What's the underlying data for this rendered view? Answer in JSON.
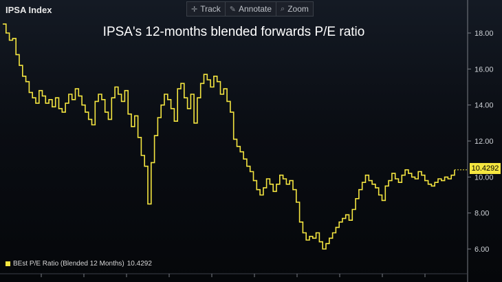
{
  "header": {
    "ticker": "IPSA Index"
  },
  "toolbar": {
    "items": [
      {
        "label": "Track",
        "icon": "crosshair-icon"
      },
      {
        "label": "Annotate",
        "icon": "pencil-icon"
      },
      {
        "label": "Zoom",
        "icon": "magnifier-icon"
      }
    ]
  },
  "colors": {
    "series": "#f5e640",
    "axis": "#7b7f86",
    "text": "#cfd3d8"
  },
  "legend": {
    "label": "BEst P/E Ratio (Blended 12 Months)",
    "value": "10.4292"
  },
  "last_value_badge": "10.4292",
  "chart_data": {
    "type": "line",
    "title": "IPSA's 12-months blended forwards P/E ratio",
    "xlabel": "",
    "ylabel": "",
    "ylim": [
      5.0,
      19.0
    ],
    "yticks": [
      6.0,
      8.0,
      10.0,
      12.0,
      14.0,
      16.0,
      18.0
    ],
    "ytick_labels": [
      "6.00",
      "8.00",
      "10.00",
      "12.00",
      "14.00",
      "16.00",
      "18.00"
    ],
    "grid": false,
    "legend_position": "bottom-left",
    "series": [
      {
        "name": "BEst P/E Ratio (Blended 12 Months)",
        "values": [
          18.5,
          18.0,
          17.6,
          17.7,
          16.8,
          16.2,
          15.6,
          15.3,
          14.7,
          14.4,
          14.1,
          14.8,
          14.5,
          14.1,
          14.3,
          13.9,
          14.4,
          13.8,
          13.6,
          14.1,
          14.6,
          14.3,
          14.9,
          14.5,
          14.0,
          13.6,
          13.2,
          12.9,
          14.2,
          14.6,
          14.3,
          13.6,
          13.2,
          14.4,
          15.0,
          14.6,
          14.2,
          14.8,
          13.5,
          12.8,
          13.4,
          12.2,
          11.2,
          10.6,
          8.5,
          10.8,
          12.3,
          13.3,
          14.0,
          14.6,
          14.3,
          13.8,
          13.1,
          14.9,
          15.2,
          14.4,
          13.8,
          14.6,
          13.0,
          14.4,
          15.2,
          15.7,
          15.4,
          15.0,
          15.6,
          15.3,
          14.6,
          14.9,
          14.2,
          13.6,
          12.1,
          11.7,
          11.4,
          11.0,
          10.6,
          10.3,
          9.8,
          9.3,
          9.0,
          9.4,
          9.9,
          9.6,
          9.2,
          9.6,
          10.1,
          9.9,
          9.6,
          9.8,
          9.3,
          8.6,
          7.5,
          6.9,
          6.5,
          6.7,
          6.6,
          6.9,
          6.4,
          6.0,
          6.3,
          6.6,
          6.9,
          7.2,
          7.5,
          7.7,
          7.9,
          7.6,
          8.2,
          8.8,
          9.3,
          9.7,
          10.1,
          9.8,
          9.6,
          9.4,
          9.0,
          8.7,
          9.5,
          9.8,
          10.2,
          9.9,
          9.7,
          10.1,
          10.4,
          10.2,
          10.0,
          9.9,
          10.3,
          10.1,
          9.8,
          9.6,
          9.5,
          9.7,
          9.9,
          9.8,
          10.0,
          9.9,
          10.1,
          10.4
        ]
      }
    ]
  }
}
